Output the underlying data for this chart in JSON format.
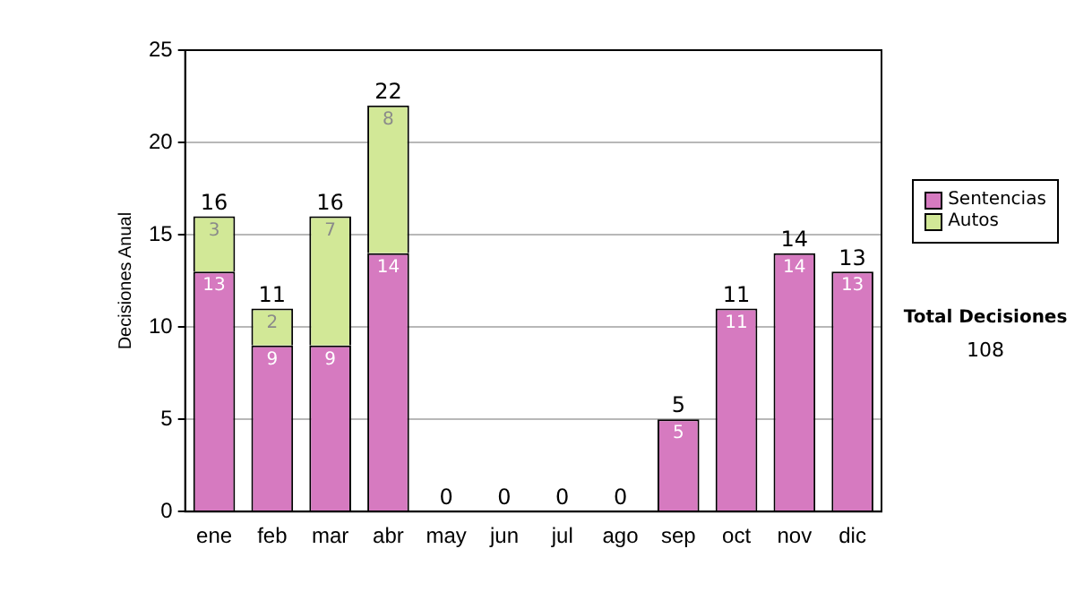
{
  "chart_data": {
    "type": "bar",
    "stacked": true,
    "ylabel": "Decisiones Anual",
    "categories": [
      "ene",
      "feb",
      "mar",
      "abr",
      "may",
      "jun",
      "jul",
      "ago",
      "sep",
      "oct",
      "nov",
      "dic"
    ],
    "series": [
      {
        "name": "Sentencias",
        "color": "#d67ac0",
        "values": [
          13,
          9,
          9,
          14,
          0,
          0,
          0,
          0,
          5,
          11,
          14,
          13
        ],
        "value_labels": [
          "13",
          "9",
          "9",
          "14",
          null,
          null,
          null,
          null,
          "5",
          "11",
          "14",
          "13"
        ]
      },
      {
        "name": "Autos",
        "color": "#d2e897",
        "values": [
          3,
          2,
          7,
          8,
          0,
          0,
          0,
          0,
          0,
          0,
          0,
          0
        ],
        "value_labels": [
          "3",
          "2",
          "7",
          "8",
          null,
          null,
          null,
          null,
          null,
          null,
          null,
          null
        ]
      }
    ],
    "totals": [
      "16",
      "11",
      "16",
      "22",
      "0",
      "0",
      "0",
      "0",
      "5",
      "11",
      "14",
      "13"
    ],
    "ylim": [
      0,
      25
    ],
    "yticks": [
      0,
      5,
      10,
      15,
      20,
      25
    ],
    "grid": "y",
    "legend": "right",
    "annotations": [
      "Total Decisiones",
      "108"
    ]
  }
}
